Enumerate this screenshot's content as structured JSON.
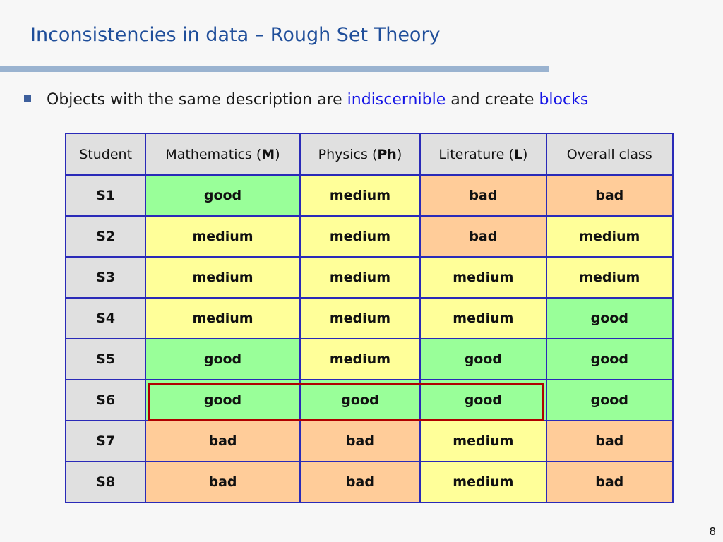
{
  "slide": {
    "title": "Inconsistencies in data – Rough Set Theory",
    "bullet": {
      "prefix": "Objects with the same description are ",
      "term1": "indiscernible",
      "middle": " and create ",
      "term2": "blocks"
    },
    "page_number": "8"
  },
  "table": {
    "headers": [
      {
        "prefix": "Student",
        "code": "",
        "suffix": ""
      },
      {
        "prefix": "Mathematics (",
        "code": "M",
        "suffix": ")"
      },
      {
        "prefix": "Physics (",
        "code": "Ph",
        "suffix": ")"
      },
      {
        "prefix": "Literature (",
        "code": "L",
        "suffix": ")"
      },
      {
        "prefix": "Overall class",
        "code": "",
        "suffix": ""
      }
    ],
    "rows": [
      {
        "id": "S1",
        "values": [
          "good",
          "medium",
          "bad",
          "bad"
        ]
      },
      {
        "id": "S2",
        "values": [
          "medium",
          "medium",
          "bad",
          "medium"
        ]
      },
      {
        "id": "S3",
        "values": [
          "medium",
          "medium",
          "medium",
          "medium"
        ]
      },
      {
        "id": "S4",
        "values": [
          "medium",
          "medium",
          "medium",
          "good"
        ]
      },
      {
        "id": "S5",
        "values": [
          "good",
          "medium",
          "good",
          "good"
        ]
      },
      {
        "id": "S6",
        "values": [
          "good",
          "good",
          "good",
          "good"
        ]
      },
      {
        "id": "S7",
        "values": [
          "bad",
          "bad",
          "medium",
          "bad"
        ]
      },
      {
        "id": "S8",
        "values": [
          "bad",
          "bad",
          "medium",
          "bad"
        ]
      }
    ],
    "colors": {
      "good": "#99ff99",
      "medium": "#ffff99",
      "bad": "#ffcc99",
      "label": "#e0e0e0",
      "border": "#2a2ab8",
      "highlight_box": "#b00000"
    }
  }
}
